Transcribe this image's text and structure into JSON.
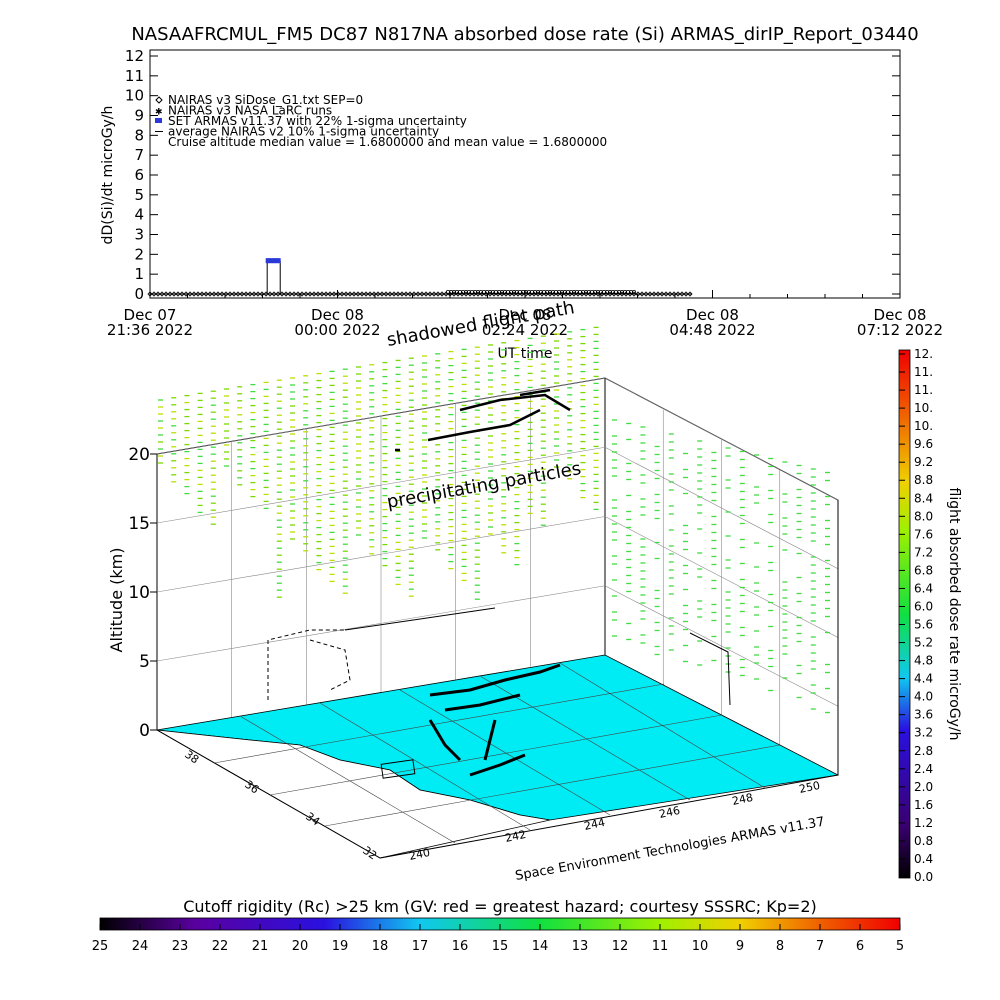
{
  "header": {
    "title": "NASAAFRCMUL_FM5 DC87 N817NA absorbed dose rate (Si) ARMAS_dirIP_Report_03440"
  },
  "legend": {
    "items": [
      {
        "symbol": "diamond",
        "label": "NAIRAS v3 SiDose_G1.txt SEP=0"
      },
      {
        "symbol": "star",
        "label": "NAIRAS v3 NASA LaRC runs"
      },
      {
        "symbol": "square",
        "label": "SET ARMAS v11.37 with 22% 1-sigma uncertainty"
      },
      {
        "symbol": "line",
        "label": "average NAIRAS v2 10% 1-sigma uncertainty"
      },
      {
        "symbol": "none",
        "label": "Cruise altitude median value = 1.6800000 and mean value = 1.6800000"
      }
    ]
  },
  "chart_data": [
    {
      "type": "line",
      "ylabel": "dD(Si)/dt microGy/h",
      "xlabel": "UT time",
      "ylim": [
        0,
        12
      ],
      "yticks": [
        "0",
        "1",
        "2",
        "3",
        "4",
        "5",
        "6",
        "7",
        "8",
        "9",
        "10",
        "11",
        "12"
      ],
      "xticks": [
        {
          "line1": "Dec 07",
          "line2": "21:36 2022"
        },
        {
          "line1": "Dec 08",
          "line2": "00:00 2022"
        },
        {
          "line1": "Dec 08",
          "line2": "02:24 2022"
        },
        {
          "line1": "Dec 08",
          "line2": "04:48 2022"
        },
        {
          "line1": "Dec 08",
          "line2": "07:12 2022"
        }
      ],
      "series": [
        {
          "name": "NAIRAS v3 SiDose_G1.txt SEP=0",
          "marker": "diamond",
          "x_start": "Dec 07 21:36",
          "x_end": "Dec 08 04:32",
          "y": 0.0
        },
        {
          "name": "SET ARMAS v11.37 with 22% 1-sigma uncertainty",
          "marker": "square",
          "color": "#2a39d8",
          "x": [
            "Dec 07 23:06",
            "Dec 07 23:16"
          ],
          "y": [
            1.68,
            1.68
          ]
        }
      ]
    },
    {
      "type": "scatter",
      "ylabel": "Altitude (km)",
      "zticks": [
        "0",
        "5",
        "10",
        "15",
        "20"
      ],
      "lon_ticks": [
        "240",
        "242",
        "244",
        "246",
        "248",
        "250"
      ],
      "lat_ticks": [
        "32",
        "34",
        "36",
        "38"
      ],
      "labels": [
        "shadowed flight path",
        "precipitating particles"
      ],
      "credit": "Space Environment Technologies ARMAS v11.37"
    }
  ],
  "colorbar_right": {
    "label": "flight absorbed dose rate microGy/h",
    "ticks": [
      "0.0",
      "0.4",
      "0.8",
      "1.2",
      "1.6",
      "2.0",
      "2.4",
      "2.8",
      "3.2",
      "3.6",
      "4.0",
      "4.4",
      "4.8",
      "5.2",
      "5.6",
      "6.0",
      "6.4",
      "6.8",
      "7.2",
      "7.6",
      "8.0",
      "8.4",
      "8.8",
      "9.2",
      "9.6",
      "10.",
      "10.",
      "11.",
      "11.",
      "12."
    ],
    "colors": [
      "#000000",
      "#3a0070",
      "#2a10e0",
      "#10c8f0",
      "#10e040",
      "#a0f000",
      "#f0d000",
      "#f06000",
      "#f00000"
    ]
  },
  "colorbar_bottom": {
    "label": "Cutoff rigidity (Rc) >25 km (GV: red = greatest hazard; courtesy SSSRC; Kp=2)",
    "ticks": [
      "25",
      "24",
      "23",
      "22",
      "21",
      "20",
      "19",
      "18",
      "17",
      "16",
      "15",
      "14",
      "13",
      "12",
      "11",
      "10",
      "9",
      "8",
      "7",
      "6",
      "5"
    ]
  }
}
